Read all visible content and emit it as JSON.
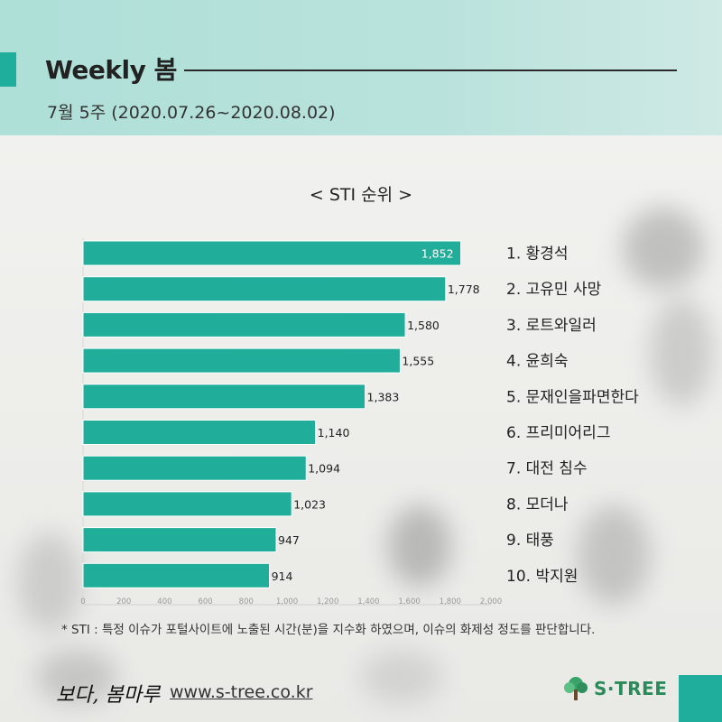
{
  "header": {
    "title": "Weekly 봄",
    "subtitle": "7월 5주 (2020.07.26~2020.08.02)"
  },
  "chart_title": "< STI 순위 >",
  "chart_data": {
    "type": "bar",
    "orientation": "horizontal",
    "title": "< STI 순위 >",
    "categories": [
      "1. 황경석",
      "2. 고유민 사망",
      "3. 로트와일러",
      "4. 윤희숙",
      "5. 문재인을파면한다",
      "6. 프리미어리그",
      "7. 대전 침수",
      "8. 모더나",
      "9. 태풍",
      "10. 박지원"
    ],
    "values": [
      1852,
      1778,
      1580,
      1555,
      1383,
      1140,
      1094,
      1023,
      947,
      914
    ],
    "value_labels": [
      "1,852",
      "1,778",
      "1,580",
      "1,555",
      "1,383",
      "1,140",
      "1,094",
      "1,023",
      "947",
      "914"
    ],
    "xlim": [
      0,
      2000
    ],
    "x_ticks": [
      "0",
      "200",
      "400",
      "600",
      "800",
      "1,000",
      "1,200",
      "1,400",
      "1,600",
      "1,800",
      "2,000"
    ],
    "grid": false,
    "bar_color": "#20ae9b"
  },
  "footnote": "* STI : 특정 이슈가 포털사이트에 노출된 시간(분)을 지수화 하였으며, 이슈의 화제성 정도를 판단합니다.",
  "footer": {
    "brand": "보다, 봄마루",
    "url": "www.s-tree.co.kr",
    "logo_text": "S·TREE"
  },
  "colors": {
    "accent": "#1fae9b",
    "header_bg": "#b3e0d9"
  }
}
